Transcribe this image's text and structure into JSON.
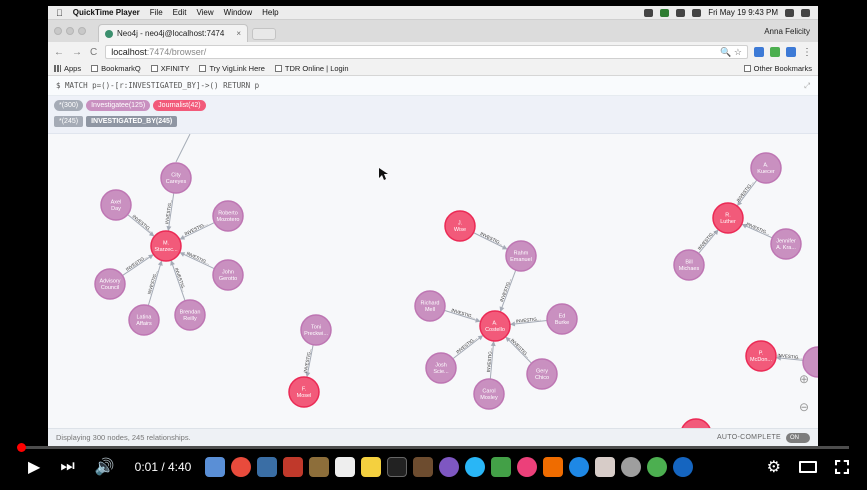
{
  "menubar": {
    "apple_icon": "apple-icon",
    "app": "QuickTime Player",
    "items": [
      "File",
      "Edit",
      "View",
      "Window",
      "Help"
    ],
    "clock": "Fri May 19  9:43 PM"
  },
  "browser": {
    "tab_title": "Neo4j - neo4j@localhost:7474",
    "tab_close": "×",
    "profile": "Anna Felicity",
    "back": "←",
    "forward": "→",
    "reload": "C",
    "url_host": "localhost",
    "url_path": ":7474/browser/",
    "zoom_icon": "🔍",
    "star": "☆",
    "menu": "⋮"
  },
  "bookmarks": {
    "items": [
      "Apps",
      "BookmarkQ",
      "XFINITY",
      "Try VigLink Here",
      "TDR Online | Login"
    ],
    "other": "Other Bookmarks"
  },
  "neo4j": {
    "query": "$ MATCH p=()-[r:INVESTIGATED_BY]->() RETURN p",
    "expand": "⤢",
    "labels": [
      {
        "text": "*(300)",
        "style": "grey"
      },
      {
        "text": "Investigatee(125)",
        "style": "purple"
      },
      {
        "text": "Journalist(42)",
        "style": "pink"
      }
    ],
    "rels": [
      {
        "text": "*(245)",
        "style": "rel"
      },
      {
        "text": "INVESTIGATED_BY(245)",
        "style": "reldark"
      }
    ],
    "status": "Displaying 300 nodes, 245 relationships.",
    "autocomplete": "AUTO-COMPLETE",
    "toggle": "ON",
    "zoom_in": "⊕",
    "zoom_out": "⊖"
  },
  "graph": {
    "rel_label": "INVESTIG...",
    "colors": {
      "investigatee": "#c990c0",
      "journalist": "#f25a7a",
      "edge": "#a5abb6"
    },
    "nodes": [
      {
        "id": "M. Starzec",
        "label": "M. Starzec...",
        "type": "journalist"
      },
      {
        "id": "City",
        "label": "City Careyes",
        "type": "investigatee"
      },
      {
        "id": "Axel",
        "label": "Axel Day",
        "type": "investigatee"
      },
      {
        "id": "Roberto",
        "label": "Roberto Mozotero",
        "type": "investigatee"
      },
      {
        "id": "Advisory",
        "label": "Advisory Council",
        "type": "investigatee"
      },
      {
        "id": "John G",
        "label": "John Gerotto",
        "type": "investigatee"
      },
      {
        "id": "Latina",
        "label": "Latina Affairs",
        "type": "investigatee"
      },
      {
        "id": "Brendan",
        "label": "Brendan Reilly",
        "type": "investigatee"
      },
      {
        "id": "Toni",
        "label": "Toni Preckwi...",
        "type": "investigatee"
      },
      {
        "id": "F. Mosel",
        "label": "F. Mosel",
        "type": "journalist"
      },
      {
        "id": "J. Wise",
        "label": "J. Wise",
        "type": "journalist"
      },
      {
        "id": "Rahm",
        "label": "Rahm Emanuel",
        "type": "investigatee"
      },
      {
        "id": "A. Costello",
        "label": "A. Costello",
        "type": "journalist"
      },
      {
        "id": "Richard",
        "label": "Richard Mell",
        "type": "investigatee"
      },
      {
        "id": "Ed Burke",
        "label": "Ed Burke",
        "type": "investigatee"
      },
      {
        "id": "Josh",
        "label": "Josh Scie...",
        "type": "investigatee"
      },
      {
        "id": "Gery",
        "label": "Gery Chico",
        "type": "investigatee"
      },
      {
        "id": "Carol",
        "label": "Carol Mosley",
        "type": "investigatee"
      },
      {
        "id": "R. Luther",
        "label": "R. Luther",
        "type": "journalist"
      },
      {
        "id": "A. Kuecer",
        "label": "A. Kuecer",
        "type": "investigatee"
      },
      {
        "id": "Jennifer",
        "label": "Jennifer A. Kra...",
        "type": "investigatee"
      },
      {
        "id": "Bill",
        "label": "Bill Michaes",
        "type": "investigatee"
      },
      {
        "id": "P. McDon",
        "label": "P. McDon...",
        "type": "journalist"
      },
      {
        "id": "edge1",
        "label": "",
        "type": "investigatee"
      },
      {
        "id": "bottom",
        "label": "",
        "type": "journalist"
      }
    ],
    "edges": [
      [
        "City",
        "M. Starzec"
      ],
      [
        "Axel",
        "M. Starzec"
      ],
      [
        "Roberto",
        "M. Starzec"
      ],
      [
        "Advisory",
        "M. Starzec"
      ],
      [
        "John G",
        "M. Starzec"
      ],
      [
        "Latina",
        "M. Starzec"
      ],
      [
        "Brendan",
        "M. Starzec"
      ],
      [
        "Toni",
        "F. Mosel"
      ],
      [
        "Rahm",
        "A. Costello"
      ],
      [
        "J. Wise",
        "Rahm"
      ],
      [
        "Richard",
        "A. Costello"
      ],
      [
        "Ed Burke",
        "A. Costello"
      ],
      [
        "Josh",
        "A. Costello"
      ],
      [
        "Gery",
        "A. Costello"
      ],
      [
        "Carol",
        "A. Costello"
      ],
      [
        "A. Kuecer",
        "R. Luther"
      ],
      [
        "Jennifer",
        "R. Luther"
      ],
      [
        "Bill",
        "R. Luther"
      ],
      [
        "edge1",
        "P. McDon"
      ]
    ]
  },
  "player": {
    "time": "0:01 / 4:40",
    "progress_fraction": 0.004
  }
}
